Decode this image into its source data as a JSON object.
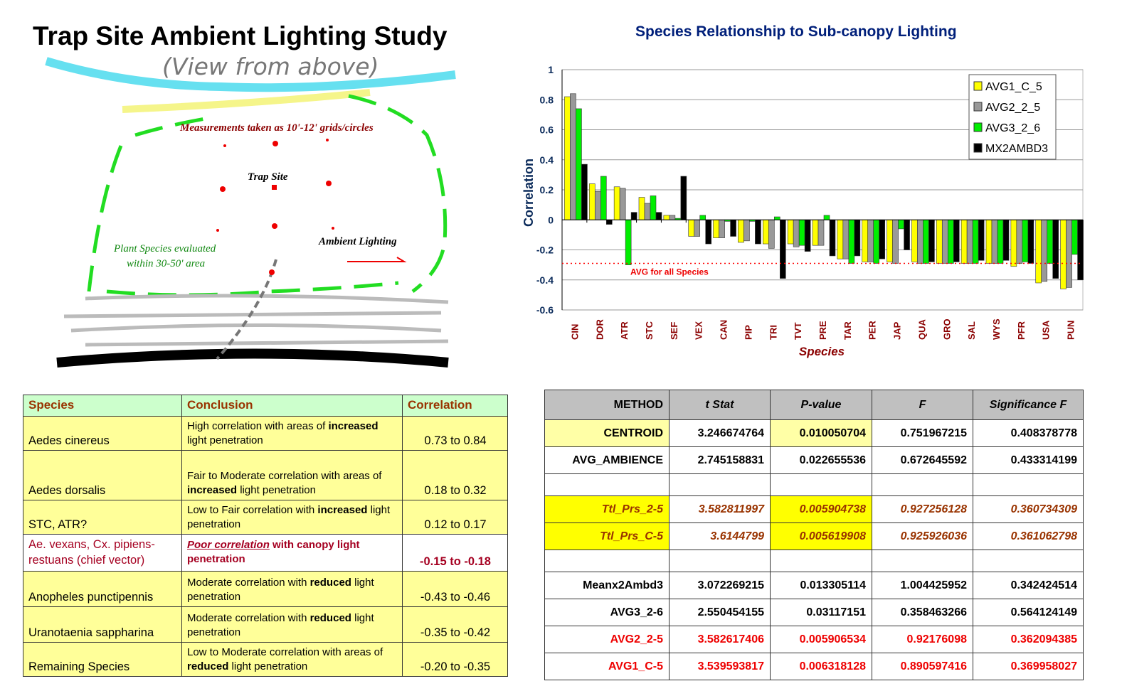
{
  "diagram": {
    "title": "Trap Site Ambient Lighting Study",
    "subtitle": "(View from above)",
    "measurements_note": "Measurements taken as 10'-12' grids/circles",
    "trap_site_label": "Trap Site",
    "ambient_label": "Ambient Lighting",
    "plant_note_line1": "Plant Species evaluated",
    "plant_note_line2": "within 30-50' area"
  },
  "chart_data": {
    "type": "bar",
    "title": "Species Relationship to Sub-canopy Lighting",
    "xlabel": "Species",
    "ylabel": "Correlation",
    "ylim": [
      -0.6,
      1
    ],
    "yticks": [
      "1",
      "0.8",
      "0.6",
      "0.4",
      "0.2",
      "0",
      "-0.2",
      "-0.4",
      "-0.6"
    ],
    "grid": true,
    "legend_position": "top-right",
    "categories": [
      "CIN",
      "DOR",
      "ATR",
      "STC",
      "SEF",
      "VEX",
      "CAN",
      "PIP",
      "TRI",
      "TVT",
      "PRE",
      "TAR",
      "PER",
      "JAP",
      "QUA",
      "GRO",
      "SAL",
      "WYS",
      "PFR",
      "USA",
      "PUN"
    ],
    "series": [
      {
        "name": "AVG1_C_5",
        "color": "#ffff00",
        "values": [
          0.82,
          0.24,
          0.22,
          0.15,
          0.03,
          -0.11,
          -0.12,
          -0.15,
          -0.16,
          -0.16,
          -0.17,
          -0.26,
          -0.28,
          -0.28,
          -0.28,
          -0.29,
          -0.29,
          -0.29,
          -0.31,
          -0.42,
          -0.46
        ]
      },
      {
        "name": "AVG2_2_5",
        "color": "#999999",
        "values": [
          0.84,
          0.19,
          0.21,
          0.11,
          0.03,
          -0.11,
          -0.12,
          -0.14,
          -0.19,
          -0.18,
          -0.17,
          -0.26,
          -0.28,
          -0.29,
          -0.29,
          -0.29,
          -0.29,
          -0.29,
          -0.29,
          -0.41,
          -0.45
        ]
      },
      {
        "name": "AVG3_2_6",
        "color": "#00ee00",
        "values": [
          0.74,
          0.29,
          -0.3,
          0.16,
          0.01,
          0.03,
          -0.01,
          -0.01,
          0.02,
          -0.17,
          0.03,
          -0.29,
          -0.29,
          -0.06,
          -0.29,
          -0.29,
          -0.29,
          -0.29,
          -0.28,
          -0.29,
          -0.23
        ]
      },
      {
        "name": "MX2AMBD3",
        "color": "#000000",
        "values": [
          0.37,
          -0.03,
          0.05,
          0.05,
          0.29,
          -0.16,
          -0.11,
          -0.16,
          -0.39,
          -0.21,
          -0.24,
          -0.24,
          -0.26,
          -0.2,
          -0.28,
          -0.28,
          -0.27,
          -0.27,
          -0.29,
          -0.39,
          -0.4
        ]
      }
    ],
    "reference_line": {
      "label": "AVG for all Species",
      "value": -0.29,
      "color": "#ff0000"
    }
  },
  "species_table": {
    "headers": [
      "Species",
      "Conclusion",
      "Correlation"
    ],
    "rows": [
      {
        "species": "Aedes cinereus",
        "pre": "High correlation with areas of ",
        "bold": "increased",
        "post": " light penetration",
        "corr": "0.73 to 0.84"
      },
      {
        "species": "Aedes dorsalis",
        "pre": "Fair to Moderate correlation with areas of ",
        "bold": "increased",
        "post": " light penetration",
        "corr": "0.18 to 0.32"
      },
      {
        "species": "STC, ATR?",
        "pre": "Low to Fair correlation with ",
        "bold": "increased",
        "post": " light penetration",
        "corr": "0.12 to 0.17"
      },
      {
        "species": "Ae. vexans, Cx. pipiens-restuans (chief vector)",
        "pre": "Poor correlation",
        "bold": " with canopy light penetration",
        "post": "",
        "corr": "-0.15 to -0.18"
      },
      {
        "species": "Anopheles punctipennis",
        "pre": "Moderate correlation with ",
        "bold": "reduced",
        "post": " light penetration",
        "corr": "-0.43 to -0.46"
      },
      {
        "species": "Uranotaenia sappharina",
        "pre": "Moderate correlation with ",
        "bold": "reduced",
        "post": " light penetration",
        "corr": "-0.35 to -0.42"
      },
      {
        "species": "Remaining Species",
        "pre": "Low to Moderate correlation with areas of ",
        "bold": "reduced",
        "post": " light penetration",
        "corr": "-0.20 to -0.35"
      }
    ]
  },
  "stats_table": {
    "headers": [
      "METHOD",
      "t Stat",
      "P-value",
      "F",
      "Significance F"
    ],
    "rows": [
      [
        "CENTROID",
        "3.246674764",
        "0.010050704",
        "0.751967215",
        "0.408378778"
      ],
      [
        "AVG_AMBIENCE",
        "2.745158831",
        "0.022655536",
        "0.672645592",
        "0.433314199"
      ],
      [
        "Ttl_Prs_2-5",
        "3.582811997",
        "0.005904738",
        "0.927256128",
        "0.360734309"
      ],
      [
        "Ttl_Prs_C-5",
        "3.6144799",
        "0.005619908",
        "0.925926036",
        "0.361062798"
      ],
      [
        "Meanx2Ambd3",
        "3.072269215",
        "0.013305114",
        "1.004425952",
        "0.342424514"
      ],
      [
        "AVG3_2-6",
        "2.550454155",
        "0.03117151",
        "0.358463266",
        "0.564124149"
      ],
      [
        "AVG2_2-5",
        "3.582617406",
        "0.005906534",
        "0.92176098",
        "0.362094385"
      ],
      [
        "AVG1_C-5",
        "3.539593817",
        "0.006318128",
        "0.890597416",
        "0.369958027"
      ]
    ]
  }
}
